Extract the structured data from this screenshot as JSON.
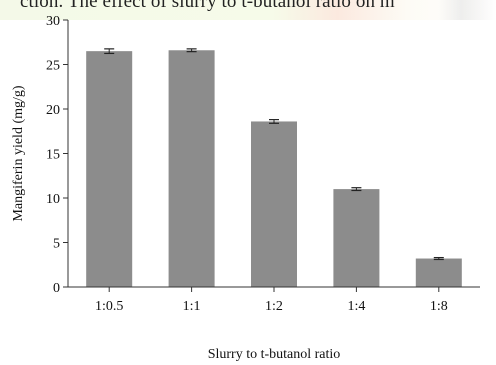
{
  "caption": "ction. The effect of slurry to t-butanol ratio on m",
  "colors": {
    "bar": "#8c8c8c",
    "axis": "#333333",
    "text": "#111111"
  },
  "chart_data": {
    "type": "bar",
    "categories": [
      "1:0.5",
      "1:1",
      "1:2",
      "1:4",
      "1:8"
    ],
    "values": [
      26.5,
      26.6,
      18.6,
      11.0,
      3.2
    ],
    "errors": [
      0.2,
      0.1,
      0.15,
      0.1,
      0.05
    ],
    "xlabel": "Slurry to t-butanol ratio",
    "ylabel": "Mangiferin yield (mg/g)",
    "ylim": [
      0,
      30
    ],
    "yticks": [
      "0",
      "5",
      "10",
      "15",
      "20",
      "25",
      "30"
    ],
    "grid": false,
    "error_bars": true
  }
}
